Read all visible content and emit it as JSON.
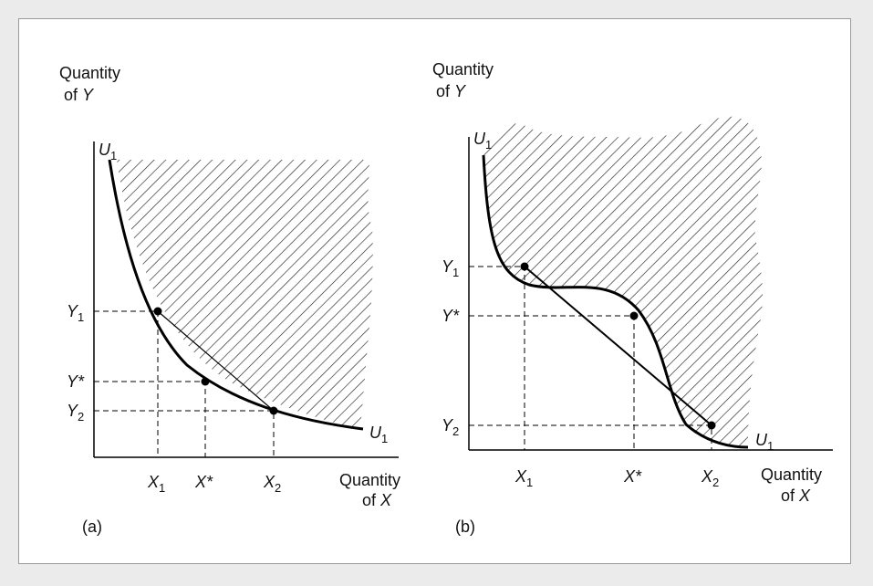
{
  "panels": [
    {
      "id": "a",
      "panel_label": "(a)",
      "y_axis_title": [
        "Quantity",
        "of",
        "Y"
      ],
      "x_axis_title": [
        "Quantity",
        "of",
        "X"
      ],
      "curve_label": "U",
      "curve_label_sub": "1",
      "x_ticks": [
        {
          "base": "X",
          "sub": "1"
        },
        {
          "base": "X*",
          "sub": ""
        },
        {
          "base": "X",
          "sub": "2"
        }
      ],
      "y_ticks": [
        {
          "base": "Y",
          "sub": "1"
        },
        {
          "base": "Y*",
          "sub": ""
        },
        {
          "base": "Y",
          "sub": "2"
        }
      ]
    },
    {
      "id": "b",
      "panel_label": "(b)",
      "y_axis_title": [
        "Quantity",
        "of",
        "Y"
      ],
      "x_axis_title": [
        "Quantity",
        "of",
        "X"
      ],
      "curve_label": "U",
      "curve_label_sub": "1",
      "x_ticks": [
        {
          "base": "X",
          "sub": "1"
        },
        {
          "base": "X*",
          "sub": ""
        },
        {
          "base": "X",
          "sub": "2"
        }
      ],
      "y_ticks": [
        {
          "base": "Y",
          "sub": "1"
        },
        {
          "base": "Y*",
          "sub": ""
        },
        {
          "base": "Y",
          "sub": "2"
        }
      ]
    }
  ],
  "colors": {
    "line": "#000000",
    "hatch": "#222222",
    "background": "#ebebeb",
    "panel": "#ffffff"
  }
}
